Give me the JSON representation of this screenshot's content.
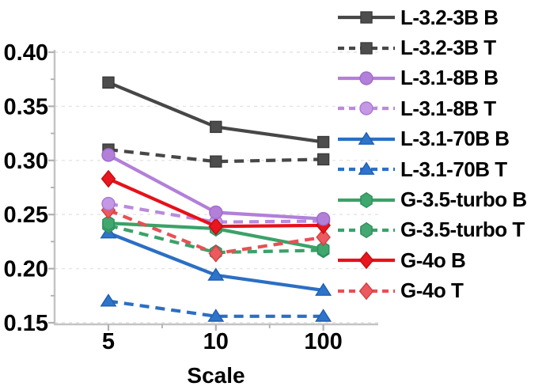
{
  "chart_data": {
    "type": "line",
    "title": "",
    "xlabel": "Scale",
    "ylabel": "",
    "x_categories": [
      "5",
      "10",
      "100"
    ],
    "yticks": [
      0.4,
      0.35,
      0.3,
      0.25,
      0.2,
      0.15
    ],
    "ytick_labels": [
      "0.40",
      "0.35",
      "0.30",
      "0.25",
      "0.20",
      "0.15"
    ],
    "ylim": [
      0.148,
      0.42
    ],
    "grid": "horizontal-dashed",
    "legend_position": "right",
    "series": [
      {
        "name": "L-3.2-3B B",
        "line": "solid",
        "marker": "square",
        "color": "#474747",
        "fill": "#4d4d4d",
        "edge": "#3a3a3a",
        "values": [
          0.372,
          0.331,
          0.317
        ]
      },
      {
        "name": "L-3.2-3B T",
        "line": "dashed",
        "marker": "square",
        "color": "#474747",
        "fill": "#4d4d4d",
        "edge": "#3a3a3a",
        "values": [
          0.31,
          0.299,
          0.301
        ]
      },
      {
        "name": "L-3.1-8B B",
        "line": "solid",
        "marker": "circle",
        "color": "#b27fd9",
        "fill": "#b27fd9",
        "edge": "#9f6bc9",
        "values": [
          0.305,
          0.252,
          0.246
        ]
      },
      {
        "name": "L-3.1-8B T",
        "line": "dashed",
        "marker": "circle",
        "color": "#b98ade",
        "fill": "#c498e5",
        "edge": "#a877d2",
        "values": [
          0.26,
          0.243,
          0.244
        ]
      },
      {
        "name": "L-3.1-70B B",
        "line": "solid",
        "marker": "triangle",
        "color": "#2b6fc4",
        "fill": "#2e74ca",
        "edge": "#1f5fae",
        "values": [
          0.233,
          0.194,
          0.18
        ]
      },
      {
        "name": "L-3.1-70B T",
        "line": "dashed",
        "marker": "triangle",
        "color": "#2b6fc4",
        "fill": "#2e74ca",
        "edge": "#1f5fae",
        "values": [
          0.17,
          0.156,
          0.156
        ]
      },
      {
        "name": "G-3.5-turbo B",
        "line": "solid",
        "marker": "hexagon",
        "color": "#3aa268",
        "fill": "#40a76f",
        "edge": "#2e8f5a",
        "values": [
          0.242,
          0.237,
          0.218
        ]
      },
      {
        "name": "G-3.5-turbo T",
        "line": "dashed",
        "marker": "hexagon",
        "color": "#3aa268",
        "fill": "#45a873",
        "edge": "#2e8f5a",
        "values": [
          0.24,
          0.215,
          0.217
        ]
      },
      {
        "name": "G-4o B",
        "line": "solid",
        "marker": "diamond",
        "color": "#e6111a",
        "fill": "#e8161e",
        "edge": "#c90910",
        "values": [
          0.283,
          0.239,
          0.24
        ]
      },
      {
        "name": "G-4o T",
        "line": "dashed",
        "marker": "diamond",
        "color": "#e75054",
        "fill": "#ea5a5e",
        "edge": "#d83c41",
        "values": [
          0.254,
          0.214,
          0.229
        ]
      }
    ],
    "draw_order": [
      5,
      4,
      1,
      0,
      7,
      6,
      9,
      3,
      8,
      2
    ]
  }
}
